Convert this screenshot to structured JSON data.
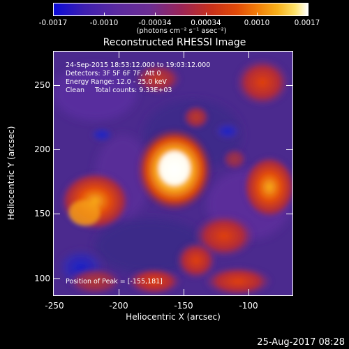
{
  "colorbar": {
    "tick_labels": [
      "-0.0017",
      "-0.0010",
      "-0.00034",
      "0.00034",
      "0.0010",
      "0.0017"
    ],
    "units": "(photons cm⁻² s⁻¹ asec⁻²)",
    "range": [
      -0.0017,
      0.0017
    ]
  },
  "title": "Reconstructed RHESSI Image",
  "info": {
    "time": "24-Sep-2015 18:53:12.000 to 19:03:12.000",
    "detectors": "Detectors: 3F 5F 6F 7F, Att 0",
    "energy": "Energy Range: 12.0 - 25.0 keV",
    "clean": "Clean     Total counts: 9.33E+03"
  },
  "peak": "Position of Peak = [-155,181]",
  "x_axis": {
    "label": "Heliocentric X (arcsec)",
    "ticks": [
      "-250",
      "-200",
      "-150",
      "-100"
    ],
    "range": [
      -250,
      -62
    ]
  },
  "y_axis": {
    "label": "Heliocentric Y (arcsec)",
    "ticks": [
      "100",
      "150",
      "200",
      "250"
    ],
    "range": [
      87,
      277
    ]
  },
  "stamp": "25-Aug-2017 08:28",
  "colors": {
    "background": "#000000",
    "low": "#0b0bd8",
    "mid": "#6c2d92",
    "high": "#ffffff"
  }
}
